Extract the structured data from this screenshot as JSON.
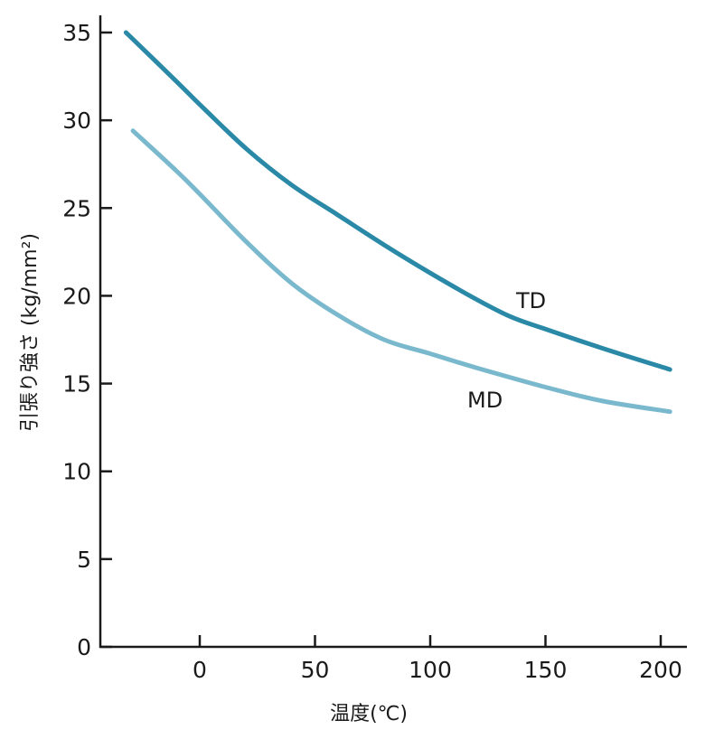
{
  "chart_data": {
    "type": "line",
    "title": "",
    "xlabel": "温度(℃)",
    "ylabel": "引張り強さ (kg/mm²)",
    "xlim": [
      -35,
      205
    ],
    "ylim": [
      0,
      35
    ],
    "xticks": [
      0,
      50,
      100,
      150,
      200
    ],
    "yticks": [
      0,
      5,
      10,
      15,
      20,
      25,
      30,
      35
    ],
    "grid": false,
    "legend": "none",
    "series": [
      {
        "name": "TD",
        "color": "#2b89a8",
        "x": [
          -32,
          -10,
          0,
          20,
          40,
          60,
          80,
          100,
          120,
          135,
          150,
          175,
          204
        ],
        "y": [
          35.0,
          32.2,
          30.9,
          28.4,
          26.3,
          24.6,
          22.9,
          21.3,
          19.8,
          18.8,
          18.1,
          17.0,
          15.8
        ]
      },
      {
        "name": "MD",
        "color": "#7ab9cd",
        "x": [
          -29,
          -10,
          0,
          20,
          40,
          60,
          80,
          100,
          120,
          150,
          175,
          204
        ],
        "y": [
          29.4,
          27.1,
          25.8,
          23.1,
          20.7,
          18.9,
          17.5,
          16.7,
          15.9,
          14.8,
          14.0,
          13.4
        ]
      }
    ]
  }
}
